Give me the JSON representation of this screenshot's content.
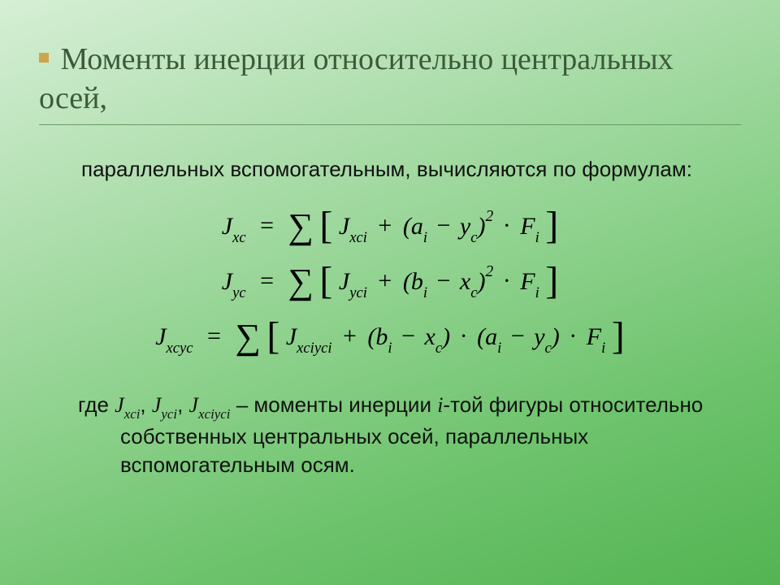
{
  "background": {
    "gradient_start": "#d6efd5",
    "gradient_end": "#53b452"
  },
  "title": {
    "bullet_color": "#cfa54a",
    "text": "Моменты инерции относительно центральных осей,",
    "text_color": "#3c5a3a",
    "font_size_pt": 38,
    "underline_color": "#6a9a68"
  },
  "subtitle": {
    "text": "параллельных вспомогательным, вычисляются по формулам:",
    "font_size_pt": 26,
    "color": "#111111"
  },
  "formulae": {
    "font_family": "Times New Roman",
    "font_size_pt": 30,
    "color": "#000000",
    "items": [
      {
        "lhs_letter": "J",
        "lhs_sub": "xc",
        "sum_letter": "J",
        "sum_sub": "xci",
        "paren_a_letter": "a",
        "paren_a_sub": "i",
        "paren_b_letter": "y",
        "paren_b_sub": "c",
        "power": "2",
        "second_paren": null,
        "F_letter": "F",
        "F_sub": "i"
      },
      {
        "lhs_letter": "J",
        "lhs_sub": "yc",
        "sum_letter": "J",
        "sum_sub": "yci",
        "paren_a_letter": "b",
        "paren_a_sub": "i",
        "paren_b_letter": "x",
        "paren_b_sub": "c",
        "power": "2",
        "second_paren": null,
        "F_letter": "F",
        "F_sub": "i"
      },
      {
        "lhs_letter": "J",
        "lhs_sub": "xcyc",
        "sum_letter": "J",
        "sum_sub": "xciyci",
        "paren_a_letter": "b",
        "paren_a_sub": "i",
        "paren_b_letter": "x",
        "paren_b_sub": "c",
        "power": null,
        "second_paren": {
          "a_letter": "a",
          "a_sub": "i",
          "b_letter": "y",
          "b_sub": "c"
        },
        "F_letter": "F",
        "F_sub": "i"
      }
    ]
  },
  "explain": {
    "prefix": "где  ",
    "sym1_letter": "J",
    "sym1_sub": "xci",
    "sep1": ", ",
    "sym2_letter": "J",
    "sym2_sub": "yci",
    "sep2": ", ",
    "sym3_letter": "J",
    "sym3_sub": "xciyci",
    "mid1": " – моменты инерции ",
    "i_letter": "i",
    "mid2": "-той фигуры относительно собственных центральных осей, параллельных вспомогательным осям.",
    "font_size_pt": 26,
    "color": "#111111"
  }
}
